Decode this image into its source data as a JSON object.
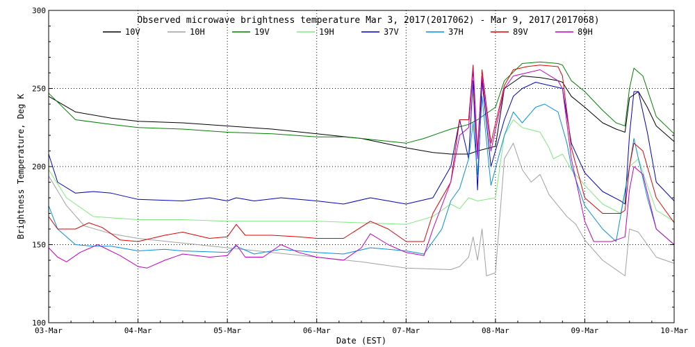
{
  "chart_data": {
    "type": "line",
    "title": "Observed microwave brightness temperature Mar  3, 2017(2017062) - Mar  9, 2017(2017068)",
    "xlabel": "Date (EST)",
    "ylabel": "Brightness Temperature, Deg K",
    "x_ticks": [
      "03-Mar",
      "04-Mar",
      "05-Mar",
      "06-Mar",
      "07-Mar",
      "08-Mar",
      "09-Mar",
      "10-Mar"
    ],
    "y_ticks": [
      "100",
      "150",
      "200",
      "250",
      "300"
    ],
    "xlim": [
      "03-Mar",
      "10-Mar"
    ],
    "ylim": [
      100,
      300
    ],
    "grid": "dotted",
    "legend_position": "top",
    "series": [
      {
        "name": "10V",
        "color": "#000000",
        "points": [
          [
            0,
            245
          ],
          [
            0.3,
            235
          ],
          [
            0.7,
            231
          ],
          [
            1,
            229
          ],
          [
            1.5,
            228
          ],
          [
            2,
            226
          ],
          [
            2.5,
            224
          ],
          [
            3,
            221
          ],
          [
            3.5,
            218
          ],
          [
            4,
            212
          ],
          [
            4.3,
            209
          ],
          [
            4.5,
            208
          ],
          [
            4.7,
            208
          ],
          [
            4.8,
            210
          ],
          [
            5,
            213
          ],
          [
            5.1,
            250
          ],
          [
            5.3,
            258
          ],
          [
            5.5,
            257
          ],
          [
            5.7,
            255
          ],
          [
            5.75,
            254
          ],
          [
            5.85,
            245
          ],
          [
            6,
            238
          ],
          [
            6.2,
            228
          ],
          [
            6.35,
            224
          ],
          [
            6.45,
            222
          ],
          [
            6.5,
            244
          ],
          [
            6.6,
            248
          ],
          [
            6.7,
            238
          ],
          [
            6.8,
            226
          ],
          [
            7,
            216
          ]
        ]
      },
      {
        "name": "10H",
        "color": "#a0a0a0",
        "points": [
          [
            0,
            194
          ],
          [
            0.2,
            175
          ],
          [
            0.4,
            162
          ],
          [
            0.7,
            157
          ],
          [
            1,
            154
          ],
          [
            1.5,
            151
          ],
          [
            2,
            148
          ],
          [
            2.5,
            145
          ],
          [
            3,
            142
          ],
          [
            3.5,
            139
          ],
          [
            4,
            135
          ],
          [
            4.5,
            134
          ],
          [
            4.6,
            136
          ],
          [
            4.7,
            142
          ],
          [
            4.75,
            155
          ],
          [
            4.8,
            140
          ],
          [
            4.85,
            160
          ],
          [
            4.9,
            130
          ],
          [
            5,
            132
          ],
          [
            5.1,
            205
          ],
          [
            5.2,
            215
          ],
          [
            5.3,
            198
          ],
          [
            5.4,
            190
          ],
          [
            5.5,
            195
          ],
          [
            5.6,
            182
          ],
          [
            5.7,
            175
          ],
          [
            5.8,
            168
          ],
          [
            5.9,
            163
          ],
          [
            6,
            153
          ],
          [
            6.2,
            140
          ],
          [
            6.4,
            132
          ],
          [
            6.45,
            130
          ],
          [
            6.5,
            160
          ],
          [
            6.6,
            158
          ],
          [
            6.7,
            150
          ],
          [
            6.8,
            142
          ],
          [
            7,
            138
          ]
        ]
      },
      {
        "name": "19V",
        "color": "#008000",
        "points": [
          [
            0,
            247
          ],
          [
            0.3,
            230
          ],
          [
            0.7,
            227
          ],
          [
            1,
            225
          ],
          [
            1.5,
            224
          ],
          [
            2,
            222
          ],
          [
            2.5,
            221
          ],
          [
            3,
            219
          ],
          [
            3.3,
            219
          ],
          [
            3.5,
            218
          ],
          [
            4,
            215
          ],
          [
            4.2,
            218
          ],
          [
            4.5,
            224
          ],
          [
            4.7,
            227
          ],
          [
            4.8,
            230
          ],
          [
            5,
            238
          ],
          [
            5.1,
            255
          ],
          [
            5.3,
            266
          ],
          [
            5.5,
            267
          ],
          [
            5.7,
            266
          ],
          [
            5.75,
            265
          ],
          [
            5.85,
            255
          ],
          [
            6,
            248
          ],
          [
            6.2,
            236
          ],
          [
            6.35,
            228
          ],
          [
            6.45,
            226
          ],
          [
            6.5,
            250
          ],
          [
            6.55,
            263
          ],
          [
            6.65,
            258
          ],
          [
            6.8,
            232
          ],
          [
            7,
            221
          ]
        ]
      },
      {
        "name": "19H",
        "color": "#80e880",
        "points": [
          [
            0,
            198
          ],
          [
            0.2,
            180
          ],
          [
            0.5,
            168
          ],
          [
            1,
            166
          ],
          [
            1.5,
            166
          ],
          [
            2,
            165
          ],
          [
            2.5,
            165
          ],
          [
            3,
            165
          ],
          [
            3.5,
            164
          ],
          [
            4,
            163
          ],
          [
            4.3,
            168
          ],
          [
            4.5,
            176
          ],
          [
            4.6,
            173
          ],
          [
            4.7,
            180
          ],
          [
            4.8,
            178
          ],
          [
            5,
            180
          ],
          [
            5.1,
            220
          ],
          [
            5.2,
            230
          ],
          [
            5.3,
            225
          ],
          [
            5.5,
            222
          ],
          [
            5.6,
            212
          ],
          [
            5.65,
            205
          ],
          [
            5.75,
            208
          ],
          [
            5.85,
            198
          ],
          [
            6,
            188
          ],
          [
            6.2,
            176
          ],
          [
            6.4,
            170
          ],
          [
            6.5,
            200
          ],
          [
            6.6,
            205
          ],
          [
            6.7,
            188
          ],
          [
            6.8,
            172
          ],
          [
            7,
            165
          ]
        ]
      },
      {
        "name": "37V",
        "color": "#0000c0",
        "points": [
          [
            0,
            208
          ],
          [
            0.1,
            190
          ],
          [
            0.3,
            183
          ],
          [
            0.5,
            184
          ],
          [
            0.7,
            183
          ],
          [
            1,
            179
          ],
          [
            1.5,
            178
          ],
          [
            1.8,
            180
          ],
          [
            2,
            178
          ],
          [
            2.1,
            180
          ],
          [
            2.3,
            178
          ],
          [
            2.6,
            180
          ],
          [
            3,
            178
          ],
          [
            3.3,
            176
          ],
          [
            3.6,
            180
          ],
          [
            4,
            176
          ],
          [
            4.3,
            180
          ],
          [
            4.5,
            200
          ],
          [
            4.6,
            230
          ],
          [
            4.7,
            205
          ],
          [
            4.75,
            255
          ],
          [
            4.8,
            185
          ],
          [
            4.85,
            255
          ],
          [
            4.95,
            200
          ],
          [
            5.1,
            230
          ],
          [
            5.2,
            245
          ],
          [
            5.3,
            250
          ],
          [
            5.45,
            254
          ],
          [
            5.6,
            252
          ],
          [
            5.75,
            250
          ],
          [
            5.85,
            215
          ],
          [
            6,
            196
          ],
          [
            6.2,
            184
          ],
          [
            6.4,
            178
          ],
          [
            6.45,
            176
          ],
          [
            6.5,
            220
          ],
          [
            6.55,
            248
          ],
          [
            6.6,
            248
          ],
          [
            6.7,
            222
          ],
          [
            6.8,
            190
          ],
          [
            7,
            178
          ]
        ]
      },
      {
        "name": "37H",
        "color": "#0090e0",
        "points": [
          [
            0,
            175
          ],
          [
            0.1,
            160
          ],
          [
            0.3,
            150
          ],
          [
            0.5,
            149
          ],
          [
            0.7,
            149
          ],
          [
            1,
            146
          ],
          [
            1.3,
            147
          ],
          [
            1.5,
            146
          ],
          [
            2,
            145
          ],
          [
            2.1,
            149
          ],
          [
            2.3,
            144
          ],
          [
            2.6,
            147
          ],
          [
            3,
            145
          ],
          [
            3.3,
            144
          ],
          [
            3.6,
            148
          ],
          [
            4,
            146
          ],
          [
            4.2,
            144
          ],
          [
            4.4,
            160
          ],
          [
            4.5,
            178
          ],
          [
            4.6,
            186
          ],
          [
            4.7,
            205
          ],
          [
            4.75,
            228
          ],
          [
            4.8,
            195
          ],
          [
            4.85,
            245
          ],
          [
            4.95,
            188
          ],
          [
            5.1,
            220
          ],
          [
            5.2,
            235
          ],
          [
            5.3,
            228
          ],
          [
            5.45,
            238
          ],
          [
            5.55,
            240
          ],
          [
            5.7,
            235
          ],
          [
            5.8,
            215
          ],
          [
            5.85,
            200
          ],
          [
            6,
            175
          ],
          [
            6.2,
            160
          ],
          [
            6.35,
            152
          ],
          [
            6.5,
            200
          ],
          [
            6.55,
            218
          ],
          [
            6.6,
            205
          ],
          [
            6.7,
            180
          ],
          [
            6.8,
            160
          ],
          [
            7,
            150
          ]
        ]
      },
      {
        "name": "89V",
        "color": "#e00000",
        "points": [
          [
            0,
            168
          ],
          [
            0.1,
            160
          ],
          [
            0.3,
            160
          ],
          [
            0.45,
            164
          ],
          [
            0.6,
            161
          ],
          [
            0.8,
            153
          ],
          [
            1,
            152
          ],
          [
            1.3,
            156
          ],
          [
            1.5,
            158
          ],
          [
            1.8,
            154
          ],
          [
            2,
            155
          ],
          [
            2.1,
            163
          ],
          [
            2.2,
            156
          ],
          [
            2.5,
            156
          ],
          [
            2.8,
            155
          ],
          [
            3,
            154
          ],
          [
            3.3,
            154
          ],
          [
            3.6,
            165
          ],
          [
            3.8,
            160
          ],
          [
            4,
            152
          ],
          [
            4.2,
            152
          ],
          [
            4.3,
            170
          ],
          [
            4.5,
            190
          ],
          [
            4.6,
            230
          ],
          [
            4.7,
            230
          ],
          [
            4.75,
            265
          ],
          [
            4.8,
            210
          ],
          [
            4.85,
            262
          ],
          [
            4.95,
            215
          ],
          [
            5.1,
            252
          ],
          [
            5.2,
            262
          ],
          [
            5.35,
            264
          ],
          [
            5.5,
            265
          ],
          [
            5.7,
            264
          ],
          [
            5.75,
            258
          ],
          [
            5.85,
            212
          ],
          [
            6,
            180
          ],
          [
            6.2,
            170
          ],
          [
            6.4,
            170
          ],
          [
            6.45,
            172
          ],
          [
            6.5,
            200
          ],
          [
            6.55,
            215
          ],
          [
            6.65,
            210
          ],
          [
            6.8,
            180
          ],
          [
            7,
            164
          ]
        ]
      },
      {
        "name": "89H",
        "color": "#c000c0",
        "points": [
          [
            0,
            148
          ],
          [
            0.1,
            142
          ],
          [
            0.2,
            139
          ],
          [
            0.35,
            145
          ],
          [
            0.55,
            150
          ],
          [
            0.8,
            143
          ],
          [
            1,
            136
          ],
          [
            1.1,
            135
          ],
          [
            1.3,
            140
          ],
          [
            1.5,
            144
          ],
          [
            1.8,
            142
          ],
          [
            2,
            143
          ],
          [
            2.1,
            150
          ],
          [
            2.2,
            142
          ],
          [
            2.4,
            142
          ],
          [
            2.6,
            150
          ],
          [
            2.8,
            145
          ],
          [
            3,
            142
          ],
          [
            3.3,
            140
          ],
          [
            3.5,
            148
          ],
          [
            3.6,
            157
          ],
          [
            3.8,
            150
          ],
          [
            4,
            145
          ],
          [
            4.2,
            143
          ],
          [
            4.3,
            160
          ],
          [
            4.5,
            190
          ],
          [
            4.6,
            220
          ],
          [
            4.7,
            225
          ],
          [
            4.75,
            262
          ],
          [
            4.8,
            205
          ],
          [
            4.85,
            258
          ],
          [
            4.95,
            210
          ],
          [
            5.1,
            250
          ],
          [
            5.2,
            258
          ],
          [
            5.35,
            260
          ],
          [
            5.5,
            262
          ],
          [
            5.7,
            255
          ],
          [
            5.75,
            250
          ],
          [
            5.85,
            205
          ],
          [
            6,
            165
          ],
          [
            6.1,
            152
          ],
          [
            6.3,
            152
          ],
          [
            6.45,
            155
          ],
          [
            6.5,
            185
          ],
          [
            6.55,
            200
          ],
          [
            6.65,
            195
          ],
          [
            6.8,
            160
          ],
          [
            7,
            150
          ]
        ]
      }
    ]
  }
}
